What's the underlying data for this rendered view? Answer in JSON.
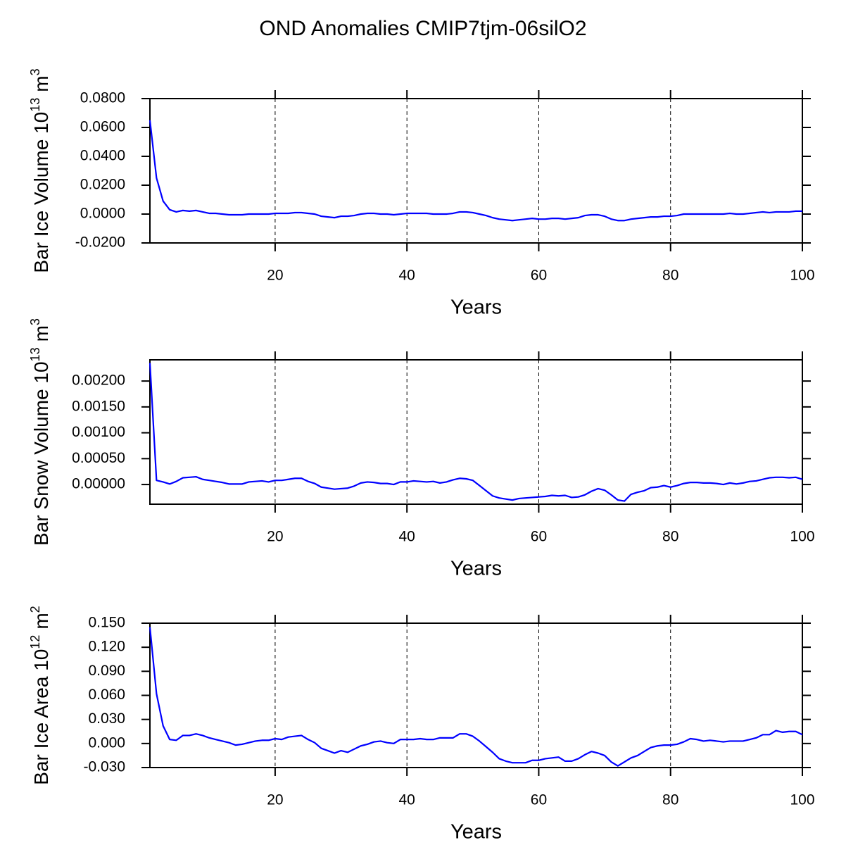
{
  "title": "OND Anomalies CMIP7tjm-06silO2",
  "chart_data": [
    {
      "type": "line",
      "xlabel": "Years",
      "ylabel": [
        "Bar Ice Volume 10",
        "13",
        "m",
        "3"
      ],
      "xlim": [
        1,
        100
      ],
      "xticks": [
        20,
        40,
        60,
        80,
        100
      ],
      "grid": "x",
      "ylim": [
        -0.02,
        0.08
      ],
      "yticks": [
        {
          "value": 0.08,
          "label": "0.0800"
        },
        {
          "value": 0.06,
          "label": "0.0600"
        },
        {
          "value": 0.04,
          "label": "0.0400"
        },
        {
          "value": 0.02,
          "label": "0.0200"
        },
        {
          "value": 0,
          "label": "0.0000"
        },
        {
          "value": -0.02,
          "label": "-0.0200"
        }
      ],
      "x": [
        1,
        2,
        3,
        4,
        5,
        6,
        7,
        8,
        9,
        10,
        11,
        12,
        13,
        14,
        15,
        16,
        17,
        18,
        19,
        20,
        21,
        22,
        23,
        24,
        25,
        26,
        27,
        28,
        29,
        30,
        31,
        32,
        33,
        34,
        35,
        36,
        37,
        38,
        39,
        40,
        41,
        42,
        43,
        44,
        45,
        46,
        47,
        48,
        49,
        50,
        51,
        52,
        53,
        54,
        55,
        56,
        57,
        58,
        59,
        60,
        61,
        62,
        63,
        64,
        65,
        66,
        67,
        68,
        69,
        70,
        71,
        72,
        73,
        74,
        75,
        76,
        77,
        78,
        79,
        80,
        81,
        82,
        83,
        84,
        85,
        86,
        87,
        88,
        89,
        90,
        91,
        92,
        93,
        94,
        95,
        96,
        97,
        98,
        99,
        100
      ],
      "series": [
        {
          "color": "#0000ff",
          "values": [
            0.065,
            0.025,
            0.009,
            0.003,
            0.0015,
            0.0025,
            0.002,
            0.0025,
            0.0015,
            0.0005,
            0.0005,
            0,
            -0.0005,
            -0.0005,
            -0.0005,
            0,
            0,
            0,
            0,
            0.0005,
            0.0005,
            0.0005,
            0.001,
            0.001,
            0.0005,
            0,
            -0.0015,
            -0.002,
            -0.0025,
            -0.0015,
            -0.0015,
            -0.001,
            0,
            0.0005,
            0.0005,
            0,
            0,
            -0.0005,
            0,
            0.0005,
            0.0005,
            0.0005,
            0.0005,
            0,
            0,
            0,
            0.0005,
            0.0015,
            0.0015,
            0.001,
            0,
            -0.001,
            -0.0025,
            -0.0035,
            -0.004,
            -0.0045,
            -0.004,
            -0.0035,
            -0.003,
            -0.0035,
            -0.0035,
            -0.003,
            -0.003,
            -0.0035,
            -0.003,
            -0.0025,
            -0.001,
            -0.0005,
            -0.0005,
            -0.0015,
            -0.0035,
            -0.0045,
            -0.0045,
            -0.0035,
            -0.003,
            -0.0025,
            -0.002,
            -0.002,
            -0.0015,
            -0.0015,
            -0.001,
            0,
            0,
            0,
            0,
            0,
            0,
            0,
            0.0005,
            0,
            0,
            0.0005,
            0.001,
            0.0015,
            0.001,
            0.0015,
            0.0015,
            0.0015,
            0.002,
            0.002
          ]
        }
      ]
    },
    {
      "type": "line",
      "xlabel": "Years",
      "ylabel": [
        "Bar Snow Volume 10",
        "13",
        "m",
        "3"
      ],
      "xlim": [
        1,
        100
      ],
      "xticks": [
        20,
        40,
        60,
        80,
        100
      ],
      "grid": "x",
      "ylim": [
        -0.00038,
        0.00241
      ],
      "yticks": [
        {
          "value": 0.002,
          "label": "0.00200"
        },
        {
          "value": 0.0015,
          "label": "0.00150"
        },
        {
          "value": 0.001,
          "label": "0.00100"
        },
        {
          "value": 0.0005,
          "label": "0.00050"
        },
        {
          "value": 0,
          "label": "0.00000"
        }
      ],
      "x": [
        1,
        2,
        3,
        4,
        5,
        6,
        7,
        8,
        9,
        10,
        11,
        12,
        13,
        14,
        15,
        16,
        17,
        18,
        19,
        20,
        21,
        22,
        23,
        24,
        25,
        26,
        27,
        28,
        29,
        30,
        31,
        32,
        33,
        34,
        35,
        36,
        37,
        38,
        39,
        40,
        41,
        42,
        43,
        44,
        45,
        46,
        47,
        48,
        49,
        50,
        51,
        52,
        53,
        54,
        55,
        56,
        57,
        58,
        59,
        60,
        61,
        62,
        63,
        64,
        65,
        66,
        67,
        68,
        69,
        70,
        71,
        72,
        73,
        74,
        75,
        76,
        77,
        78,
        79,
        80,
        81,
        82,
        83,
        84,
        85,
        86,
        87,
        88,
        89,
        90,
        91,
        92,
        93,
        94,
        95,
        96,
        97,
        98,
        99,
        100
      ],
      "series": [
        {
          "color": "#0000ff",
          "values": [
            0.00235,
            8e-05,
            5e-05,
            1e-05,
            6e-05,
            0.00013,
            0.00014,
            0.00015,
            0.0001,
            8e-05,
            6e-05,
            4e-05,
            1e-05,
            1e-05,
            1e-05,
            5e-05,
            6e-05,
            7e-05,
            5e-05,
            8e-05,
            8e-05,
            0.0001,
            0.00012,
            0.00012,
            6e-05,
            2e-05,
            -5e-05,
            -7e-05,
            -9e-05,
            -8e-05,
            -7e-05,
            -3e-05,
            3e-05,
            5e-05,
            4e-05,
            2e-05,
            2e-05,
            0,
            5e-05,
            5e-05,
            7e-05,
            6e-05,
            5e-05,
            6e-05,
            3e-05,
            5e-05,
            9e-05,
            0.00012,
            0.00011,
            8e-05,
            -2e-05,
            -0.00012,
            -0.00022,
            -0.00026,
            -0.00028,
            -0.0003,
            -0.00027,
            -0.00026,
            -0.00025,
            -0.00024,
            -0.00023,
            -0.00021,
            -0.00022,
            -0.00021,
            -0.00025,
            -0.00024,
            -0.0002,
            -0.00013,
            -8e-05,
            -0.00011,
            -0.0002,
            -0.0003,
            -0.00032,
            -0.00019,
            -0.00015,
            -0.00012,
            -6e-05,
            -5e-05,
            -2e-05,
            -5e-05,
            -2e-05,
            2e-05,
            4e-05,
            4e-05,
            3e-05,
            3e-05,
            2e-05,
            0,
            3e-05,
            1e-05,
            3e-05,
            6e-05,
            7e-05,
            0.0001,
            0.00013,
            0.00014,
            0.00014,
            0.00013,
            0.00014,
            0.0001
          ]
        }
      ]
    },
    {
      "type": "line",
      "xlabel": "Years",
      "ylabel": [
        "Bar Ice Area 10",
        "12",
        "m",
        "2"
      ],
      "xlim": [
        1,
        100
      ],
      "xticks": [
        20,
        40,
        60,
        80,
        100
      ],
      "grid": "x",
      "ylim": [
        -0.03,
        0.15
      ],
      "yticks": [
        {
          "value": 0.15,
          "label": "0.150"
        },
        {
          "value": 0.12,
          "label": "0.120"
        },
        {
          "value": 0.09,
          "label": "0.090"
        },
        {
          "value": 0.06,
          "label": "0.060"
        },
        {
          "value": 0.03,
          "label": "0.030"
        },
        {
          "value": 0,
          "label": "0.000"
        },
        {
          "value": -0.03,
          "label": "-0.030"
        }
      ],
      "x": [
        1,
        2,
        3,
        4,
        5,
        6,
        7,
        8,
        9,
        10,
        11,
        12,
        13,
        14,
        15,
        16,
        17,
        18,
        19,
        20,
        21,
        22,
        23,
        24,
        25,
        26,
        27,
        28,
        29,
        30,
        31,
        32,
        33,
        34,
        35,
        36,
        37,
        38,
        39,
        40,
        41,
        42,
        43,
        44,
        45,
        46,
        47,
        48,
        49,
        50,
        51,
        52,
        53,
        54,
        55,
        56,
        57,
        58,
        59,
        60,
        61,
        62,
        63,
        64,
        65,
        66,
        67,
        68,
        69,
        70,
        71,
        72,
        73,
        74,
        75,
        76,
        77,
        78,
        79,
        80,
        81,
        82,
        83,
        84,
        85,
        86,
        87,
        88,
        89,
        90,
        91,
        92,
        93,
        94,
        95,
        96,
        97,
        98,
        99,
        100
      ],
      "series": [
        {
          "color": "#0000ff",
          "values": [
            0.145,
            0.062,
            0.022,
            0.005,
            0.004,
            0.01,
            0.01,
            0.012,
            0.01,
            0.007,
            0.005,
            0.003,
            0.001,
            -0.002,
            -0.001,
            0.001,
            0.003,
            0.004,
            0.004,
            0.006,
            0.005,
            0.008,
            0.009,
            0.01,
            0.005,
            0.001,
            -0.006,
            -0.009,
            -0.012,
            -0.009,
            -0.011,
            -0.007,
            -0.003,
            -0.001,
            0.002,
            0.003,
            0.001,
            0,
            0.005,
            0.005,
            0.005,
            0.006,
            0.005,
            0.005,
            0.007,
            0.007,
            0.007,
            0.012,
            0.012,
            0.009,
            0.003,
            -0.004,
            -0.011,
            -0.019,
            -0.022,
            -0.024,
            -0.024,
            -0.024,
            -0.021,
            -0.021,
            -0.019,
            -0.018,
            -0.017,
            -0.022,
            -0.022,
            -0.019,
            -0.014,
            -0.01,
            -0.012,
            -0.015,
            -0.023,
            -0.028,
            -0.023,
            -0.018,
            -0.015,
            -0.01,
            -0.005,
            -0.003,
            -0.002,
            -0.002,
            -0.001,
            0.002,
            0.006,
            0.005,
            0.003,
            0.004,
            0.003,
            0.002,
            0.003,
            0.003,
            0.003,
            0.005,
            0.007,
            0.011,
            0.011,
            0.016,
            0.014,
            0.015,
            0.015,
            0.011
          ]
        }
      ]
    }
  ]
}
